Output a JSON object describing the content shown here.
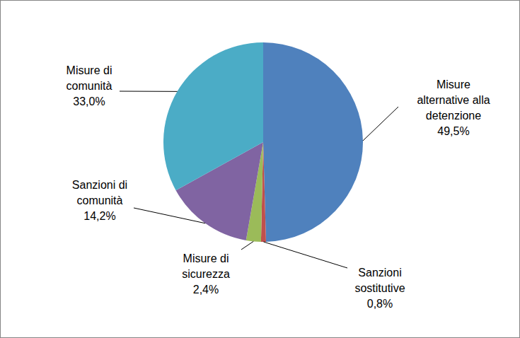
{
  "chart_data": {
    "type": "pie",
    "categories": [
      "Misure alternative alla detenzione",
      "Sanzioni sostitutive",
      "Misure di sicurezza",
      "Sanzioni di comunità",
      "Misure di comunità"
    ],
    "values": [
      49.5,
      0.8,
      2.4,
      14.2,
      33.0
    ],
    "value_labels": [
      "49,5%",
      "0,8%",
      "2,4%",
      "14,2%",
      "33,0%"
    ],
    "colors": [
      "#4f81bd",
      "#c0504d",
      "#9bbb59",
      "#8064a2",
      "#4bacc6"
    ],
    "data_labels": true
  }
}
